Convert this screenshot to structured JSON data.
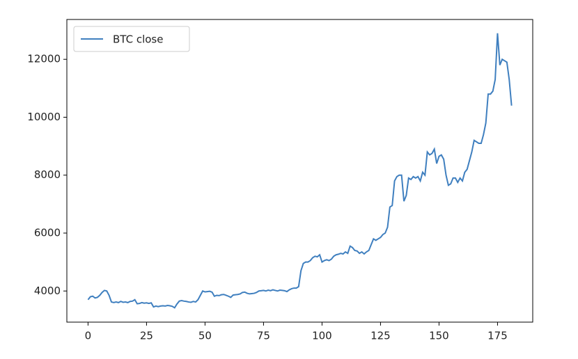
{
  "chart_data": {
    "type": "line",
    "x": [
      0,
      1,
      2,
      3,
      4,
      5,
      6,
      7,
      8,
      9,
      10,
      11,
      12,
      13,
      14,
      15,
      16,
      17,
      18,
      19,
      20,
      21,
      22,
      23,
      24,
      25,
      26,
      27,
      28,
      29,
      30,
      31,
      32,
      33,
      34,
      35,
      36,
      37,
      38,
      39,
      40,
      41,
      42,
      43,
      44,
      45,
      46,
      47,
      48,
      49,
      50,
      51,
      52,
      53,
      54,
      55,
      56,
      57,
      58,
      59,
      60,
      61,
      62,
      63,
      64,
      65,
      66,
      67,
      68,
      69,
      70,
      71,
      72,
      73,
      74,
      75,
      76,
      77,
      78,
      79,
      80,
      81,
      82,
      83,
      84,
      85,
      86,
      87,
      88,
      89,
      90,
      91,
      92,
      93,
      94,
      95,
      96,
      97,
      98,
      99,
      100,
      101,
      102,
      103,
      104,
      105,
      106,
      107,
      108,
      109,
      110,
      111,
      112,
      113,
      114,
      115,
      116,
      117,
      118,
      119,
      120,
      121,
      122,
      123,
      124,
      125,
      126,
      127,
      128,
      129,
      130,
      131,
      132,
      133,
      134,
      135,
      136,
      137,
      138,
      139,
      140,
      141,
      142,
      143,
      144,
      145,
      146,
      147,
      148,
      149,
      150,
      151,
      152,
      153,
      154,
      155,
      156,
      157,
      158,
      159,
      160,
      161,
      162,
      163,
      164,
      165,
      166,
      167,
      168,
      169,
      170,
      171,
      172,
      173,
      174,
      175,
      176,
      177,
      178,
      179,
      180,
      181
    ],
    "series": [
      {
        "name": "BTC close",
        "color": "#3f7fbf",
        "values": [
          3700,
          3800,
          3820,
          3760,
          3780,
          3850,
          3950,
          4020,
          4000,
          3850,
          3620,
          3600,
          3620,
          3600,
          3640,
          3610,
          3620,
          3600,
          3640,
          3650,
          3700,
          3560,
          3570,
          3600,
          3580,
          3590,
          3570,
          3590,
          3450,
          3480,
          3460,
          3480,
          3490,
          3480,
          3500,
          3490,
          3470,
          3420,
          3550,
          3650,
          3670,
          3650,
          3640,
          3620,
          3610,
          3640,
          3620,
          3700,
          3850,
          4000,
          3970,
          3980,
          3990,
          3960,
          3820,
          3850,
          3840,
          3870,
          3880,
          3850,
          3820,
          3780,
          3860,
          3870,
          3880,
          3900,
          3950,
          3960,
          3920,
          3900,
          3910,
          3920,
          3950,
          4000,
          4010,
          4020,
          4000,
          4030,
          4010,
          4040,
          4020,
          4000,
          4030,
          4020,
          4010,
          3980,
          4040,
          4080,
          4100,
          4100,
          4150,
          4700,
          4950,
          5000,
          5000,
          5050,
          5150,
          5200,
          5180,
          5250,
          5000,
          5050,
          5080,
          5050,
          5100,
          5200,
          5250,
          5270,
          5300,
          5280,
          5350,
          5300,
          5550,
          5500,
          5400,
          5380,
          5300,
          5350,
          5280,
          5350,
          5400,
          5600,
          5800,
          5750,
          5800,
          5850,
          5950,
          6000,
          6200,
          6900,
          6950,
          7800,
          7950,
          8000,
          8000,
          7100,
          7300,
          7900,
          7850,
          7950,
          7900,
          7950,
          7800,
          8100,
          8000,
          8800,
          8700,
          8750,
          8900,
          8400,
          8650,
          8700,
          8550,
          8000,
          7650,
          7700,
          7900,
          7900,
          7750,
          7900,
          7800,
          8100,
          8200,
          8500,
          8800,
          9200,
          9150,
          9100,
          9100,
          9400,
          9800,
          10800,
          10800,
          10900,
          11300,
          12900,
          11800,
          12000,
          11950,
          11900,
          11300,
          10400
        ]
      }
    ],
    "xlim": [
      -9.05,
      190.05
    ],
    "ylim": [
      2925,
      13375
    ],
    "xticks": [
      0,
      25,
      50,
      75,
      100,
      125,
      150,
      175
    ],
    "yticks": [
      4000,
      6000,
      8000,
      10000,
      12000
    ],
    "legend": "upper left",
    "grid": false
  }
}
